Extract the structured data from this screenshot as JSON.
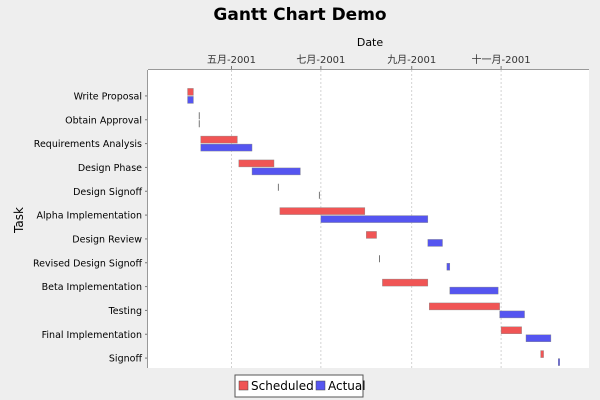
{
  "chart_data": {
    "type": "gantt",
    "title": "Gantt Chart Demo",
    "xlabel": "Date",
    "ylabel": "Task",
    "x_ticks": [
      {
        "date": "2001-05-01",
        "label": "五月-2001"
      },
      {
        "date": "2001-07-01",
        "label": "七月-2001"
      },
      {
        "date": "2001-09-01",
        "label": "九月-2001"
      },
      {
        "date": "2001-11-01",
        "label": "十一月-2001"
      }
    ],
    "xlim": [
      "2001-03-05",
      "2001-12-31"
    ],
    "grid": true,
    "legend": "bottom-center",
    "series": [
      {
        "name": "Scheduled",
        "color": "#F05555"
      },
      {
        "name": "Actual",
        "color": "#5555F0"
      }
    ],
    "tasks": [
      {
        "name": "Write Proposal",
        "scheduled": [
          "2001-04-01",
          "2001-04-05"
        ],
        "actual": [
          "2001-04-01",
          "2001-04-05"
        ]
      },
      {
        "name": "Obtain Approval",
        "scheduled": [
          "2001-04-09",
          "2001-04-09"
        ],
        "actual": [
          "2001-04-09",
          "2001-04-09"
        ]
      },
      {
        "name": "Requirements Analysis",
        "scheduled": [
          "2001-04-10",
          "2001-05-05"
        ],
        "actual": [
          "2001-04-10",
          "2001-05-15"
        ]
      },
      {
        "name": "Design Phase",
        "scheduled": [
          "2001-05-06",
          "2001-05-30"
        ],
        "actual": [
          "2001-05-15",
          "2001-06-17"
        ]
      },
      {
        "name": "Design Signoff",
        "scheduled": [
          "2001-06-02",
          "2001-06-02"
        ],
        "actual": [
          "2001-06-30",
          "2001-06-30"
        ]
      },
      {
        "name": "Alpha Implementation",
        "scheduled": [
          "2001-06-03",
          "2001-07-31"
        ],
        "actual": [
          "2001-07-01",
          "2001-09-12"
        ]
      },
      {
        "name": "Design Review",
        "scheduled": [
          "2001-08-01",
          "2001-08-08"
        ],
        "actual": [
          "2001-09-12",
          "2001-09-22"
        ]
      },
      {
        "name": "Revised Design Signoff",
        "scheduled": [
          "2001-08-10",
          "2001-08-10"
        ],
        "actual": [
          "2001-09-25",
          "2001-09-27"
        ]
      },
      {
        "name": "Beta Implementation",
        "scheduled": [
          "2001-08-12",
          "2001-09-12"
        ],
        "actual": [
          "2001-09-27",
          "2001-10-30"
        ]
      },
      {
        "name": "Testing",
        "scheduled": [
          "2001-09-13",
          "2001-10-31"
        ],
        "actual": [
          "2001-10-31",
          "2001-11-17"
        ]
      },
      {
        "name": "Final Implementation",
        "scheduled": [
          "2001-11-01",
          "2001-11-15"
        ],
        "actual": [
          "2001-11-18",
          "2001-12-05"
        ]
      },
      {
        "name": "Signoff",
        "scheduled": [
          "2001-11-28",
          "2001-11-30"
        ],
        "actual": [
          "2001-12-10",
          "2001-12-11"
        ]
      }
    ]
  }
}
